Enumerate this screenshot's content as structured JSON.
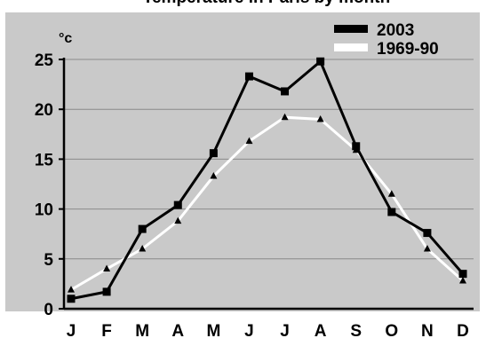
{
  "chart_data": {
    "type": "line",
    "title": "Temperature in Paris by month",
    "unit_label": "°c",
    "categories": [
      "J",
      "F",
      "M",
      "A",
      "M",
      "J",
      "J",
      "A",
      "S",
      "O",
      "N",
      "D"
    ],
    "ylim": [
      0,
      25
    ],
    "yticks": [
      0,
      5,
      10,
      15,
      20,
      25
    ],
    "grid": true,
    "legend_position": "top-right",
    "series": [
      {
        "name": "2003",
        "color": "#000000",
        "marker": "square",
        "values": [
          1.0,
          1.7,
          8.0,
          10.4,
          15.6,
          23.3,
          21.8,
          24.8,
          16.3,
          9.7,
          7.6,
          3.5
        ]
      },
      {
        "name": "1969-90",
        "color": "#ffffff",
        "marker": "triangle",
        "values": [
          1.9,
          4.0,
          6.0,
          8.8,
          13.3,
          16.8,
          19.2,
          19.0,
          15.9,
          11.5,
          6.0,
          2.8
        ]
      }
    ]
  }
}
